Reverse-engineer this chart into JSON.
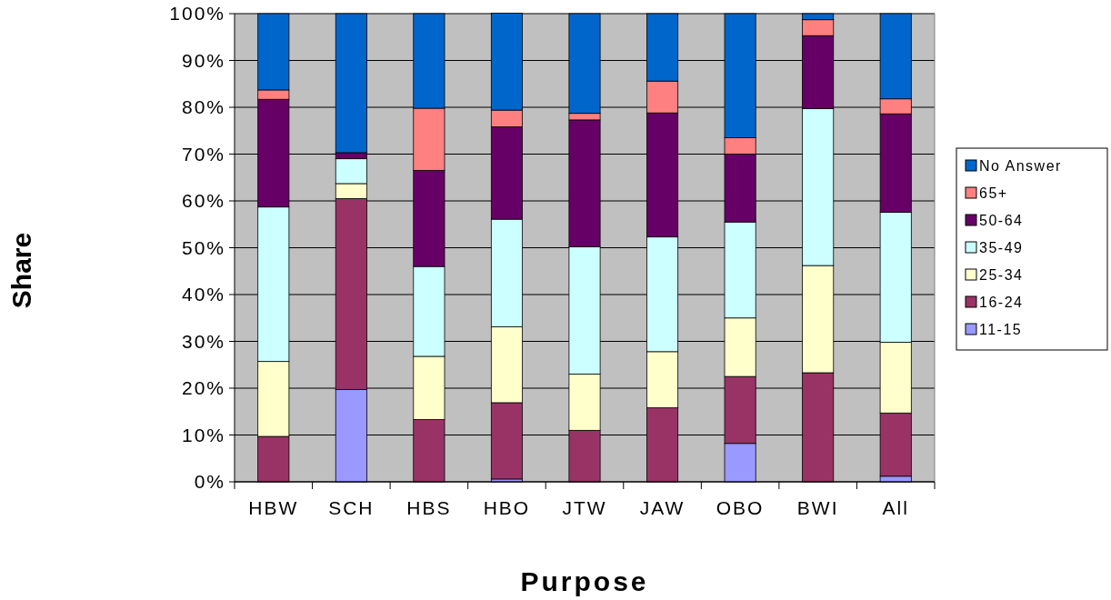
{
  "chart_data": {
    "type": "bar",
    "stacked": true,
    "xlabel": "Purpose",
    "ylabel": "Share",
    "categories": [
      "HBW",
      "SCH",
      "HBS",
      "HBO",
      "JTW",
      "JAW",
      "OBO",
      "BWI",
      "All"
    ],
    "series": [
      {
        "name": "11-15",
        "color": "#9999ff",
        "values": [
          null,
          19.7,
          null,
          0.6,
          0,
          null,
          8.2,
          0,
          1.2
        ]
      },
      {
        "name": "16-24",
        "color": "#993366",
        "values": [
          9.7,
          40.8,
          13.3,
          16.3,
          11,
          15.8,
          14.3,
          23.3,
          13.5
        ]
      },
      {
        "name": "25-34",
        "color": "#ffffcc",
        "values": [
          16,
          3.2,
          13.5,
          16.2,
          12,
          12,
          12.5,
          22.9,
          15.1
        ]
      },
      {
        "name": "35-49",
        "color": "#ccffff",
        "values": [
          33,
          5.3,
          19.2,
          23,
          27.2,
          24.5,
          20.5,
          33.5,
          27.8
        ]
      },
      {
        "name": "50-64",
        "color": "#660066",
        "values": [
          23,
          1.3,
          20.5,
          19.7,
          27.1,
          26.5,
          14.5,
          15.6,
          21
        ]
      },
      {
        "name": "65+",
        "color": "#ff8080",
        "values": [
          2,
          0,
          13.3,
          3.6,
          1.4,
          6.8,
          3.5,
          3.4,
          3.2
        ]
      },
      {
        "name": "No Answer",
        "color": "#0066cc",
        "values": [
          16.3,
          29.7,
          20.2,
          20.7,
          21.3,
          14.4,
          26.5,
          1.3,
          18.2
        ]
      }
    ],
    "ylim": [
      0,
      100
    ],
    "yticks": [
      {
        "value": 0,
        "label": "0%"
      },
      {
        "value": 10,
        "label": "10%"
      },
      {
        "value": 20,
        "label": "20%"
      },
      {
        "value": 30,
        "label": "30%"
      },
      {
        "value": 40,
        "label": "40%"
      },
      {
        "value": 50,
        "label": "50%"
      },
      {
        "value": 60,
        "label": "60%"
      },
      {
        "value": 70,
        "label": "70%"
      },
      {
        "value": 80,
        "label": "80%"
      },
      {
        "value": 90,
        "label": "90%"
      },
      {
        "value": 100,
        "label": "100%"
      }
    ],
    "grid": "y",
    "legend": "right"
  }
}
